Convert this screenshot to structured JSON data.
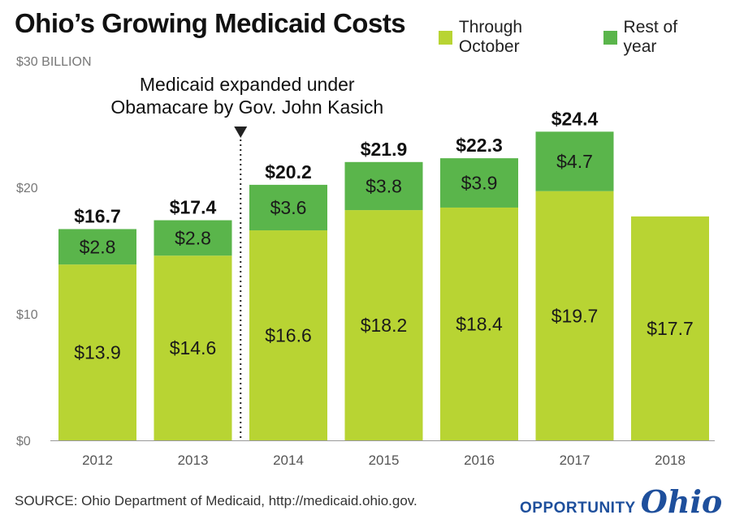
{
  "title": "Ohio’s Growing Medicaid Costs",
  "legend": {
    "through": "Through October",
    "rest": "Rest of year"
  },
  "colors": {
    "through": "#b8d433",
    "rest": "#5ab54b",
    "annotation_line": "#222222",
    "axis": "#999999",
    "brand": "#1e4f9c"
  },
  "annotation": {
    "line1": "Medicaid expanded under",
    "line2": "Obamacare by Gov. John Kasich"
  },
  "source": "SOURCE: Ohio Department of Medicaid, http://medicaid.ohio.gov.",
  "brand": {
    "opportunity": "OPPORTUNITY",
    "ohio": "Ohio"
  },
  "chart_data": {
    "type": "bar",
    "stacked": true,
    "categories": [
      "2012",
      "2013",
      "2014",
      "2015",
      "2016",
      "2017",
      "2018"
    ],
    "series": [
      {
        "name": "Through October",
        "values": [
          13.9,
          14.6,
          16.6,
          18.2,
          18.4,
          19.7,
          17.7
        ],
        "labels": [
          "$13.9",
          "$14.6",
          "$16.6",
          "$18.2",
          "$18.4",
          "$19.7",
          "$17.7"
        ]
      },
      {
        "name": "Rest of year",
        "values": [
          2.8,
          2.8,
          3.6,
          3.8,
          3.9,
          4.7,
          null
        ],
        "labels": [
          "$2.8",
          "$2.8",
          "$3.6",
          "$3.8",
          "$3.9",
          "$4.7",
          ""
        ]
      }
    ],
    "totals": [
      "$16.7",
      "$17.4",
      "$20.2",
      "$21.9",
      "$22.3",
      "$24.4",
      ""
    ],
    "ylim": [
      0,
      30
    ],
    "yticks": [
      0,
      10,
      20,
      30
    ],
    "ytick_labels": [
      "$0",
      "$10",
      "$20",
      "$30 BILLION"
    ],
    "ylabel": "",
    "xlabel": "",
    "grid": false,
    "annotation_between": [
      "2013",
      "2014"
    ]
  }
}
